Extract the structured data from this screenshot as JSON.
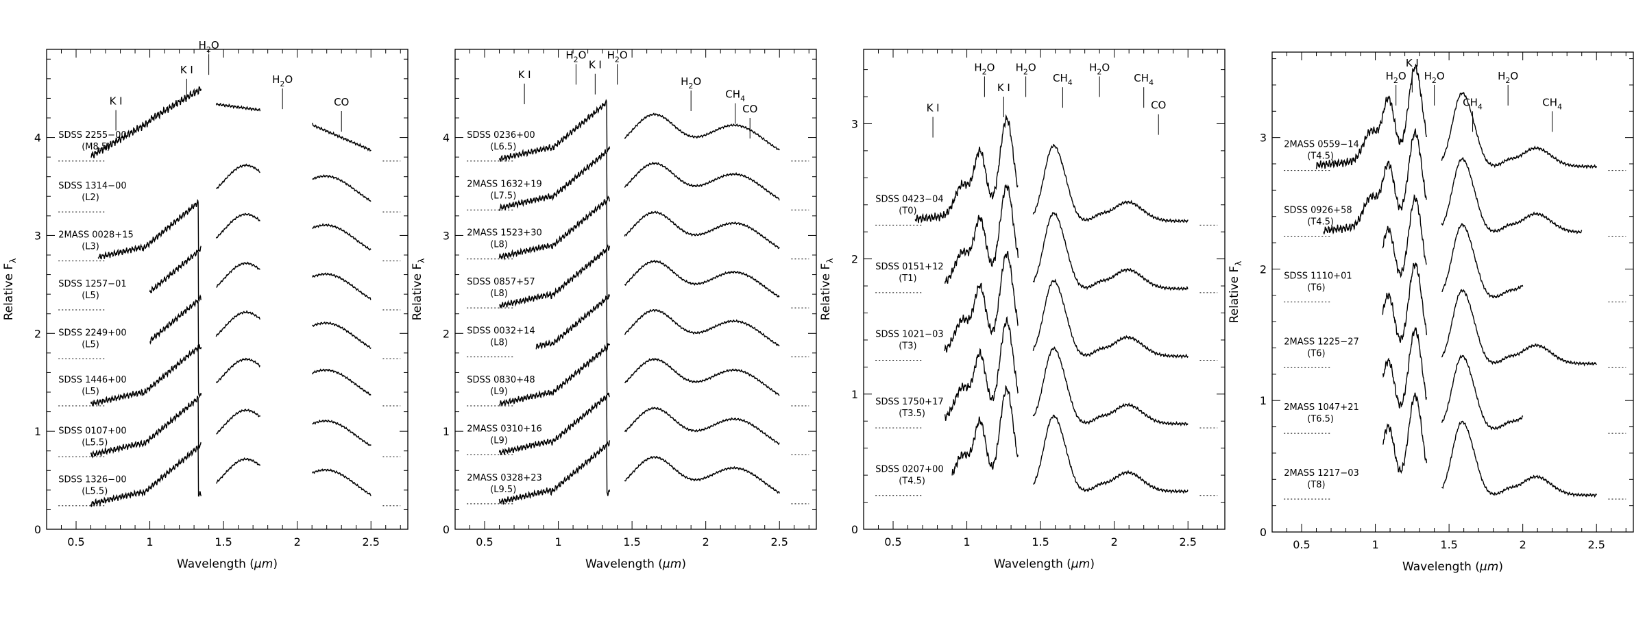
{
  "chart_data": [
    {
      "type": "line",
      "xlabel_prefix": "Wavelength (",
      "xlabel_unit": "μm",
      "xlabel_suffix": ")",
      "ylabel_main": "Relative F",
      "ylabel_sub": "λ",
      "xlim": [
        0.3,
        2.75
      ],
      "ylim": [
        0,
        4.9
      ],
      "xticks": [
        "0.5",
        "1",
        "1.5",
        "2",
        "2.5"
      ],
      "yticks": [
        "0",
        "1",
        "2",
        "3",
        "4"
      ],
      "gaps": [
        [
          1.35,
          1.45
        ],
        [
          1.75,
          2.1
        ]
      ],
      "features": [
        {
          "label": "K I",
          "sub": "",
          "x": 0.77,
          "y": 4.28
        },
        {
          "label": "K I",
          "sub": "",
          "x": 1.25,
          "y": 4.6
        },
        {
          "label": "H",
          "sub": "2",
          "post": "O",
          "x": 1.4,
          "y": 4.85
        },
        {
          "label": "H",
          "sub": "2",
          "post": "O",
          "x": 1.9,
          "y": 4.5
        },
        {
          "label": "CO",
          "sub": "",
          "x": 2.3,
          "y": 4.27
        }
      ],
      "series": [
        {
          "name": "SDSS 2255−00",
          "type": "(M8.5)",
          "offset": 3.76,
          "profile": "M",
          "x_start": 0.6,
          "x_end": 2.5
        },
        {
          "name": "SDSS 1314−00",
          "type": "(L2)",
          "offset": 3.24,
          "profile": "L",
          "x_start": 1.45,
          "x_end": 2.5,
          "missing": [
            [
              1.75,
              2.1
            ]
          ]
        },
        {
          "name": "2MASS 0028+15",
          "type": "(L3)",
          "offset": 2.74,
          "profile": "L",
          "x_start": 0.65,
          "x_end": 2.5
        },
        {
          "name": "SDSS 1257−01",
          "type": "(L5)",
          "offset": 2.24,
          "profile": "L",
          "x_start": 1.0,
          "x_end": 2.5
        },
        {
          "name": "SDSS 2249+00",
          "type": "(L5)",
          "offset": 1.74,
          "profile": "L",
          "x_start": 1.0,
          "x_end": 2.5
        },
        {
          "name": "SDSS 1446+00",
          "type": "(L5)",
          "offset": 1.26,
          "profile": "L",
          "x_start": 0.6,
          "x_end": 2.5
        },
        {
          "name": "SDSS 0107+00",
          "type": "(L5.5)",
          "offset": 0.74,
          "profile": "L",
          "x_start": 0.6,
          "x_end": 2.5
        },
        {
          "name": "SDSS 1326−00",
          "type": "(L5.5)",
          "offset": 0.24,
          "profile": "L",
          "x_start": 0.6,
          "x_end": 2.5
        }
      ]
    },
    {
      "type": "line",
      "xlabel_prefix": "Wavelength (",
      "xlabel_unit": "μm",
      "xlabel_suffix": ")",
      "ylabel_main": "Relative F",
      "ylabel_sub": "λ",
      "xlim": [
        0.3,
        2.75
      ],
      "ylim": [
        0,
        4.9
      ],
      "xticks": [
        "0.5",
        "1",
        "1.5",
        "2",
        "2.5"
      ],
      "yticks": [
        "0",
        "1",
        "2",
        "3",
        "4"
      ],
      "gaps": [
        [
          1.35,
          1.45
        ]
      ],
      "features": [
        {
          "label": "K I",
          "sub": "",
          "x": 0.77,
          "y": 4.55
        },
        {
          "label": "H",
          "sub": "2",
          "post": "O",
          "x": 1.12,
          "y": 4.75
        },
        {
          "label": "K I",
          "sub": "",
          "x": 1.25,
          "y": 4.65
        },
        {
          "label": "H",
          "sub": "2",
          "post": "O",
          "x": 1.4,
          "y": 4.75
        },
        {
          "label": "H",
          "sub": "2",
          "post": "O",
          "x": 1.9,
          "y": 4.48
        },
        {
          "label": "CH",
          "sub": "4",
          "post": "",
          "x": 2.2,
          "y": 4.35
        },
        {
          "label": "CO",
          "sub": "",
          "x": 2.3,
          "y": 4.2
        }
      ],
      "series": [
        {
          "name": "SDSS 0236+00",
          "type": "(L6.5)",
          "offset": 3.76,
          "profile": "L",
          "x_start": 0.6,
          "x_end": 2.5
        },
        {
          "name": "2MASS 1632+19",
          "type": "(L7.5)",
          "offset": 3.26,
          "profile": "L",
          "x_start": 0.6,
          "x_end": 2.5
        },
        {
          "name": "2MASS 1523+30",
          "type": "(L8)",
          "offset": 2.76,
          "profile": "L",
          "x_start": 0.6,
          "x_end": 2.5
        },
        {
          "name": "SDSS 0857+57",
          "type": "(L8)",
          "offset": 2.26,
          "profile": "L",
          "x_start": 0.6,
          "x_end": 2.5
        },
        {
          "name": "SDSS 0032+14",
          "type": "(L8)",
          "offset": 1.76,
          "profile": "L",
          "x_start": 0.85,
          "x_end": 2.5
        },
        {
          "name": "SDSS 0830+48",
          "type": "(L9)",
          "offset": 1.26,
          "profile": "L",
          "x_start": 0.6,
          "x_end": 2.5
        },
        {
          "name": "2MASS 0310+16",
          "type": "(L9)",
          "offset": 0.76,
          "profile": "L",
          "x_start": 0.6,
          "x_end": 2.5
        },
        {
          "name": "2MASS 0328+23",
          "type": "(L9.5)",
          "offset": 0.26,
          "profile": "L",
          "x_start": 0.6,
          "x_end": 2.5
        }
      ]
    },
    {
      "type": "line",
      "xlabel_prefix": "Wavelength (",
      "xlabel_unit": "μm",
      "xlabel_suffix": ")",
      "ylabel_main": "Relative F",
      "ylabel_sub": "λ",
      "xlim": [
        0.3,
        2.75
      ],
      "ylim": [
        0,
        3.55
      ],
      "xticks": [
        "0.5",
        "1",
        "1.5",
        "2",
        "2.5"
      ],
      "yticks": [
        "0",
        "1",
        "2",
        "3"
      ],
      "gaps": [
        [
          1.35,
          1.45
        ]
      ],
      "features": [
        {
          "label": "K I",
          "sub": "",
          "x": 0.77,
          "y": 3.05
        },
        {
          "label": "H",
          "sub": "2",
          "post": "O",
          "x": 1.12,
          "y": 3.35
        },
        {
          "label": "K I",
          "sub": "",
          "x": 1.25,
          "y": 3.2
        },
        {
          "label": "H",
          "sub": "2",
          "post": "O",
          "x": 1.4,
          "y": 3.35
        },
        {
          "label": "CH",
          "sub": "4",
          "post": "",
          "x": 1.65,
          "y": 3.27
        },
        {
          "label": "H",
          "sub": "2",
          "post": "O",
          "x": 1.9,
          "y": 3.35
        },
        {
          "label": "CH",
          "sub": "4",
          "post": "",
          "x": 2.2,
          "y": 3.27
        },
        {
          "label": "CO",
          "sub": "",
          "x": 2.3,
          "y": 3.07
        }
      ],
      "series": [
        {
          "name": "SDSS 0423−04",
          "type": "(T0)",
          "offset": 2.25,
          "profile": "T",
          "x_start": 0.65,
          "x_end": 2.5
        },
        {
          "name": "SDSS 0151+12",
          "type": "(T1)",
          "offset": 1.75,
          "profile": "T",
          "x_start": 0.85,
          "x_end": 2.5
        },
        {
          "name": "SDSS 1021−03",
          "type": "(T3)",
          "offset": 1.25,
          "profile": "T",
          "x_start": 0.85,
          "x_end": 2.5
        },
        {
          "name": "SDSS 1750+17",
          "type": "(T3.5)",
          "offset": 0.75,
          "profile": "T",
          "x_start": 0.85,
          "x_end": 2.5
        },
        {
          "name": "SDSS 0207+00",
          "type": "(T4.5)",
          "offset": 0.25,
          "profile": "T",
          "x_start": 0.9,
          "x_end": 2.5
        }
      ]
    },
    {
      "type": "line",
      "xlabel_prefix": "Wavelength (",
      "xlabel_unit": "μm",
      "xlabel_suffix": ")",
      "ylabel_main": "Relative F",
      "ylabel_sub": "λ",
      "xlim": [
        0.3,
        2.75
      ],
      "ylim": [
        0,
        3.65
      ],
      "xticks": [
        "0.5",
        "1",
        "1.5",
        "2",
        "2.5"
      ],
      "yticks": [
        "0",
        "1",
        "2",
        "3"
      ],
      "gaps": [
        [
          1.35,
          1.45
        ]
      ],
      "features": [
        {
          "label": "H",
          "sub": "2",
          "post": "O",
          "x": 1.14,
          "y": 3.4
        },
        {
          "label": "K I",
          "sub": "",
          "x": 1.25,
          "y": 3.5
        },
        {
          "label": "H",
          "sub": "2",
          "post": "O",
          "x": 1.4,
          "y": 3.4
        },
        {
          "label": "CH",
          "sub": "4",
          "post": "",
          "x": 1.66,
          "y": 3.2
        },
        {
          "label": "H",
          "sub": "2",
          "post": "O",
          "x": 1.9,
          "y": 3.4
        },
        {
          "label": "CH",
          "sub": "4",
          "post": "",
          "x": 2.2,
          "y": 3.2
        }
      ],
      "series": [
        {
          "name": "2MASS 0559−14",
          "type": "(T4.5)",
          "offset": 2.75,
          "profile": "T",
          "x_start": 0.6,
          "x_end": 2.5
        },
        {
          "name": "SDSS 0926+58",
          "type": "(T4.5)",
          "offset": 2.25,
          "profile": "T",
          "x_start": 0.65,
          "x_end": 2.4
        },
        {
          "name": "SDSS 1110+01",
          "type": "(T6)",
          "offset": 1.75,
          "profile": "T",
          "x_start": 1.05,
          "x_end": 2.0
        },
        {
          "name": "2MASS 1225−27",
          "type": "(T6)",
          "offset": 1.25,
          "profile": "T",
          "x_start": 1.05,
          "x_end": 2.5
        },
        {
          "name": "2MASS 1047+21",
          "type": "(T6.5)",
          "offset": 0.75,
          "profile": "T",
          "x_start": 1.05,
          "x_end": 2.0
        },
        {
          "name": "2MASS 1217−03",
          "type": "(T8)",
          "offset": 0.25,
          "profile": "T",
          "x_start": 1.05,
          "x_end": 2.5
        }
      ]
    }
  ]
}
